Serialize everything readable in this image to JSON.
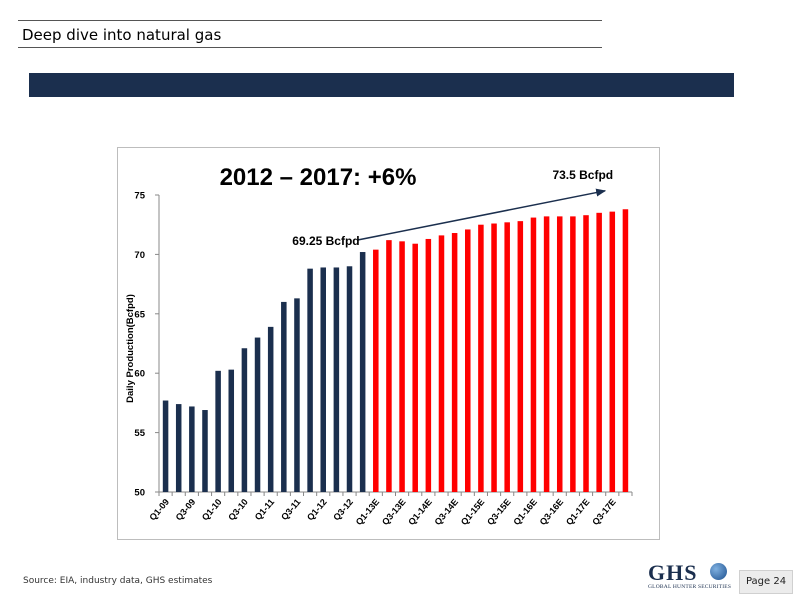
{
  "header": {
    "title": "Deep dive into natural gas"
  },
  "footer": {
    "source": "Source: EIA, industry data, GHS estimates",
    "page": "Page 24",
    "logo_text": "GHS",
    "logo_subtitle": "GLOBAL HUNTER SECURITIES"
  },
  "colors": {
    "band": "#1b2f4e",
    "historical": "#1b2f4e",
    "estimate": "#ff0000"
  },
  "chart_data": {
    "type": "bar",
    "title": "2012 – 2017: +6%",
    "ylabel": "Daily Production(Bcfpd)",
    "xlabel": "",
    "ylim": [
      50,
      75
    ],
    "yticks": [
      50,
      55,
      60,
      65,
      70,
      75
    ],
    "grid": false,
    "categories": [
      "Q1-09",
      "Q2-09",
      "Q3-09",
      "Q4-09",
      "Q1-10",
      "Q2-10",
      "Q3-10",
      "Q4-10",
      "Q1-11",
      "Q2-11",
      "Q3-11",
      "Q4-11",
      "Q1-12",
      "Q2-12",
      "Q3-12",
      "Q4-12",
      "Q1-13E",
      "Q2-13E",
      "Q3-13E",
      "Q4-13E",
      "Q1-14E",
      "Q2-14E",
      "Q3-14E",
      "Q4-14E",
      "Q1-15E",
      "Q2-15E",
      "Q3-15E",
      "Q4-15E",
      "Q1-16E",
      "Q2-16E",
      "Q3-16E",
      "Q4-16E",
      "Q1-17E",
      "Q2-17E",
      "Q3-17E",
      "Q4-17E"
    ],
    "tick_labels": [
      "Q1-09",
      "",
      "Q3-09",
      "",
      "Q1-10",
      "",
      "Q3-10",
      "",
      "Q1-11",
      "",
      "Q3-11",
      "",
      "Q1-12",
      "",
      "Q3-12",
      "",
      "Q1-13E",
      "",
      "Q3-13E",
      "",
      "Q1-14E",
      "",
      "Q3-14E",
      "",
      "Q1-15E",
      "",
      "Q3-15E",
      "",
      "Q1-16E",
      "",
      "Q3-16E",
      "",
      "Q1-17E",
      "",
      "Q3-17E",
      ""
    ],
    "series": [
      {
        "values": [
          57.7,
          57.4,
          57.2,
          56.9,
          60.2,
          60.3,
          62.1,
          63.0,
          63.9,
          66.0,
          66.3,
          68.8,
          68.9,
          68.9,
          69.0,
          70.2,
          null,
          null,
          null,
          null,
          null,
          null,
          null,
          null,
          null,
          null,
          null,
          null,
          null,
          null,
          null,
          null,
          null,
          null,
          null,
          null
        ]
      },
      {
        "values": [
          null,
          null,
          null,
          null,
          null,
          null,
          null,
          null,
          null,
          null,
          null,
          null,
          null,
          null,
          null,
          null,
          70.4,
          71.2,
          71.1,
          70.9,
          71.3,
          71.6,
          71.8,
          72.1,
          72.5,
          72.6,
          72.7,
          72.8,
          73.1,
          73.2,
          73.2,
          73.2,
          73.3,
          73.5,
          73.6,
          73.8
        ]
      }
    ],
    "annotations": [
      {
        "text": "69.25 Bcfpd",
        "index": 15
      },
      {
        "text": "73.5 Bcfpd",
        "index": 33
      }
    ]
  }
}
